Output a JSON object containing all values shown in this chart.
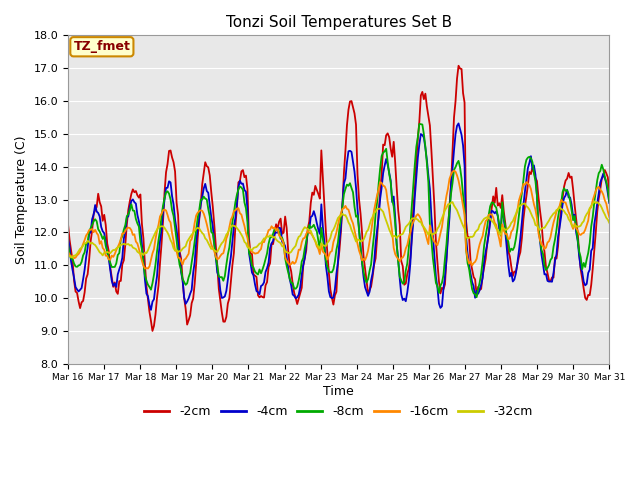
{
  "title": "Tonzi Soil Temperatures Set B",
  "ylabel": "Soil Temperature (C)",
  "xlabel": "Time",
  "ylim": [
    8.0,
    18.0
  ],
  "yticks": [
    8.0,
    9.0,
    10.0,
    11.0,
    12.0,
    13.0,
    14.0,
    15.0,
    16.0,
    17.0,
    18.0
  ],
  "xtick_labels": [
    "Mar 16",
    "Mar 17",
    "Mar 18",
    "Mar 19",
    "Mar 20",
    "Mar 21",
    "Mar 22",
    "Mar 23",
    "Mar 24",
    "Mar 25",
    "Mar 26",
    "Mar 27",
    "Mar 28",
    "Mar 29",
    "Mar 30",
    "Mar 31"
  ],
  "plot_bg": "#e8e8e8",
  "fig_bg": "#ffffff",
  "legend_label": "TZ_fmet",
  "series_colors": {
    "-2cm": "#cc0000",
    "-4cm": "#0000cc",
    "-8cm": "#00aa00",
    "-16cm": "#ff8800",
    "-32cm": "#cccc00"
  },
  "lw": 1.3,
  "n_days": 15,
  "pts_per_day": 24,
  "base_trend": [
    10.5,
    10.6,
    10.9,
    11.3,
    11.2,
    11.0,
    11.2,
    11.9,
    12.3,
    12.4,
    12.2,
    12.0,
    12.1,
    12.3,
    12.5,
    12.7
  ],
  "amp_2cm": [
    1.5,
    1.6,
    2.0,
    2.2,
    2.0,
    1.8,
    1.5,
    2.2,
    2.5,
    1.5,
    2.2,
    1.3,
    1.8,
    1.3,
    1.3,
    1.1
  ],
  "amp_4cm": [
    1.0,
    1.1,
    1.5,
    1.6,
    1.5,
    1.3,
    1.1,
    1.7,
    2.0,
    1.1,
    1.8,
    0.9,
    1.3,
    0.9,
    0.9,
    0.8
  ],
  "amp_8cm": [
    0.6,
    0.7,
    1.0,
    1.1,
    1.0,
    0.9,
    0.8,
    1.2,
    1.5,
    0.8,
    1.3,
    0.6,
    0.9,
    0.6,
    0.6,
    0.5
  ],
  "amp_16cm": [
    0.3,
    0.35,
    0.5,
    0.55,
    0.5,
    0.45,
    0.4,
    0.6,
    0.75,
    0.4,
    0.65,
    0.3,
    0.45,
    0.3,
    0.3,
    0.25
  ],
  "amp_32cm": [
    0.1,
    0.12,
    0.18,
    0.2,
    0.18,
    0.16,
    0.14,
    0.22,
    0.28,
    0.14,
    0.24,
    0.11,
    0.16,
    0.11,
    0.11,
    0.09
  ]
}
